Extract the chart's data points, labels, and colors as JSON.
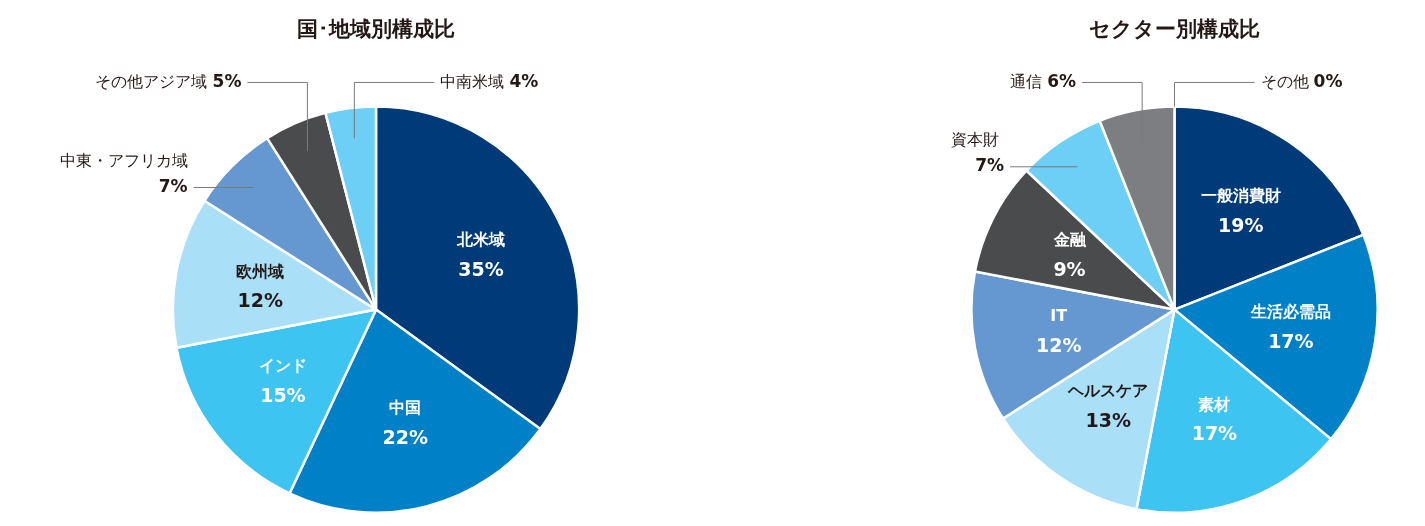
{
  "chart_data": [
    {
      "type": "pie",
      "title": "国･地域別構成比",
      "categories": [
        "北米域",
        "中国",
        "インド",
        "欧州域",
        "中東・アフリカ域",
        "その他アジア域",
        "中南米域"
      ],
      "values": [
        35,
        22,
        15,
        12,
        7,
        5,
        4
      ],
      "value_labels": [
        "35%",
        "22%",
        "15%",
        "12%",
        "7%",
        "5%",
        "4%"
      ],
      "colors": [
        "#003a78",
        "#0080c6",
        "#3ec4f0",
        "#a9dff7",
        "#6598d0",
        "#4a4b4d",
        "#6dcff6"
      ],
      "legend": false
    },
    {
      "type": "pie",
      "title": "セクター別構成比",
      "categories": [
        "一般消費財",
        "生活必需品",
        "素材",
        "ヘルスケア",
        "IT",
        "金融",
        "資本財",
        "通信",
        "その他"
      ],
      "values": [
        19,
        17,
        17,
        13,
        12,
        9,
        7,
        6,
        0
      ],
      "value_labels": [
        "19%",
        "17%",
        "17%",
        "13%",
        "12%",
        "9%",
        "7%",
        "6%",
        "0%"
      ],
      "colors": [
        "#003a78",
        "#0080c6",
        "#3ec4f0",
        "#a9dff7",
        "#6598d0",
        "#4a4b4d",
        "#6dcff6",
        "#7d7e82",
        "#7d7e82"
      ],
      "legend": false
    }
  ]
}
